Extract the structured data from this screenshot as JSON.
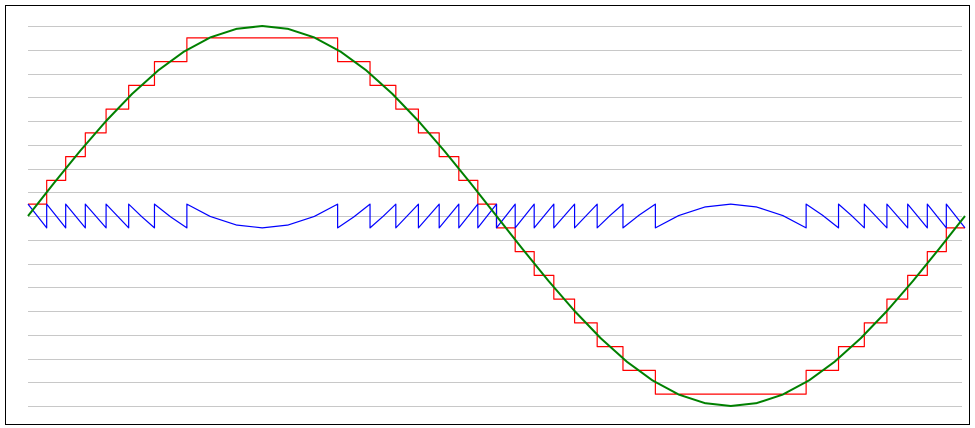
{
  "chart_data": {
    "type": "line",
    "xlim": [
      0,
      360
    ],
    "ylim": [
      -8.8,
      8.8
    ],
    "yticks": [
      -8,
      -7,
      -6,
      -5,
      -4,
      -3,
      -2,
      -1,
      0,
      1,
      2,
      3,
      4,
      5,
      6,
      7,
      8
    ],
    "grid": true,
    "series": [
      {
        "color": "#ff0000",
        "interpolation": "step",
        "x": [
          0,
          7.18,
          14.48,
          22.02,
          30,
          38.68,
          48.59,
          61.04,
          118.96,
          131.41,
          141.32,
          150,
          157.98,
          165.52,
          172.82,
          180,
          187.18,
          194.48,
          202.02,
          210,
          218.68,
          228.59,
          241.04,
          298.96,
          311.41,
          321.32,
          330,
          337.98,
          345.52,
          352.82,
          360
        ],
        "values": [
          0.5,
          1.5,
          2.5,
          3.5,
          4.5,
          5.5,
          6.5,
          7.5,
          6.5,
          5.5,
          4.5,
          3.5,
          2.5,
          1.5,
          0.5,
          -0.5,
          -1.5,
          -2.5,
          -3.5,
          -4.5,
          -5.5,
          -6.5,
          -7.5,
          -6.5,
          -5.5,
          -4.5,
          -3.5,
          -2.5,
          -1.5,
          -0.5,
          -0.5
        ]
      },
      {
        "color": "#0000ff",
        "interpolation": "linear",
        "x": [
          0,
          7.18,
          7.18,
          14.48,
          14.48,
          22.02,
          22.02,
          30,
          30,
          38.68,
          38.68,
          43.6,
          48.59,
          48.59,
          54.8,
          61.04,
          61.04,
          70,
          80,
          90,
          100,
          110,
          118.96,
          118.96,
          125.2,
          131.41,
          131.41,
          136.4,
          141.32,
          141.32,
          150,
          150,
          157.98,
          157.98,
          165.52,
          165.52,
          172.82,
          172.82,
          180,
          180,
          187.18,
          187.18,
          194.48,
          194.48,
          202.02,
          202.02,
          210,
          210,
          218.68,
          218.68,
          223.6,
          228.59,
          228.59,
          234.8,
          241.04,
          241.04,
          250,
          260,
          270,
          280,
          290,
          298.96,
          298.96,
          305.2,
          311.41,
          311.41,
          316.4,
          321.32,
          321.32,
          330,
          330,
          337.98,
          337.98,
          345.52,
          345.52,
          352.82,
          352.82,
          360
        ],
        "values": [
          0.5,
          -0.5,
          0.5,
          -0.5,
          0.5,
          -0.5,
          0.5,
          -0.5,
          0.5,
          -0.5,
          0.5,
          -0.017,
          -0.5,
          0.5,
          -0.037,
          -0.5,
          0.5,
          -0.018,
          -0.378,
          -0.5,
          -0.378,
          -0.018,
          0.5,
          -0.5,
          -0.037,
          0.5,
          -0.5,
          -0.017,
          0.5,
          -0.5,
          0.5,
          -0.5,
          0.5,
          -0.5,
          0.5,
          -0.5,
          0.5,
          -0.5,
          0.5,
          -0.5,
          0.5,
          -0.5,
          0.5,
          -0.5,
          0.5,
          -0.5,
          0.5,
          -0.5,
          0.5,
          -0.5,
          0.017,
          0.5,
          -0.5,
          0.037,
          0.5,
          -0.5,
          0.018,
          0.378,
          0.5,
          0.378,
          0.018,
          -0.5,
          0.5,
          0.037,
          -0.5,
          0.5,
          0.017,
          -0.5,
          0.5,
          -0.5,
          0.5,
          -0.5,
          0.5,
          -0.5,
          0.5,
          -0.5,
          0.5,
          -0.5
        ]
      },
      {
        "color": "#008000",
        "interpolation": "linear",
        "x": [
          0,
          10,
          20,
          30,
          40,
          50,
          60,
          70,
          80,
          90,
          100,
          110,
          120,
          130,
          140,
          150,
          160,
          170,
          180,
          190,
          200,
          210,
          220,
          230,
          240,
          250,
          260,
          270,
          280,
          290,
          300,
          310,
          320,
          330,
          340,
          350,
          360
        ],
        "values": [
          0,
          1.389,
          2.736,
          4,
          5.142,
          6.128,
          6.928,
          7.518,
          7.878,
          8,
          7.878,
          7.518,
          6.928,
          6.128,
          5.142,
          4,
          2.736,
          1.389,
          0,
          -1.389,
          -2.736,
          -4,
          -5.142,
          -6.128,
          -6.928,
          -7.518,
          -7.878,
          -8,
          -7.878,
          -7.518,
          -6.928,
          -6.128,
          -5.142,
          -4,
          -2.736,
          -1.389,
          0
        ]
      }
    ]
  }
}
